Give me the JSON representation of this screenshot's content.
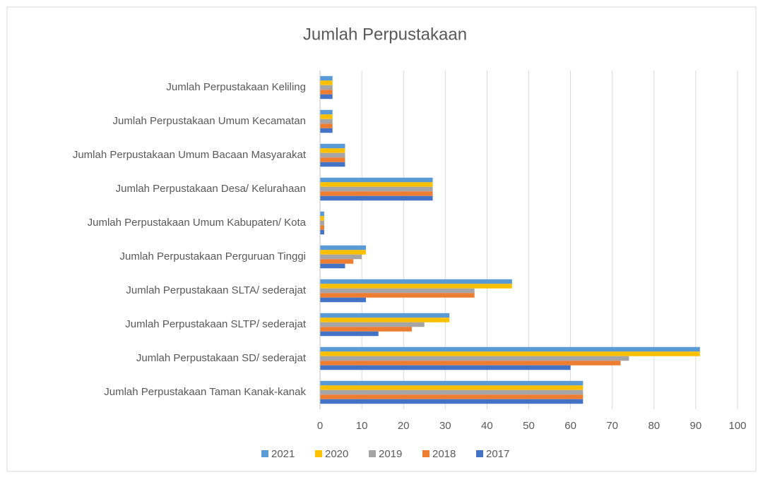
{
  "chart_data": {
    "type": "hbar",
    "title": "Jumlah Perpustakaan",
    "categories": [
      "Jumlah Perpustakaan Keliling",
      "Jumlah Perpustakaan Umum Kecamatan",
      "Jumlah Perpustakaan Umum Bacaan Masyarakat",
      "Jumlah Perpustakaan Desa/ Kelurahaan",
      "Jumlah Perpustakaan Umum Kabupaten/ Kota",
      "Jumlah Perpustakaan Perguruan Tinggi",
      "Jumlah Perpustakaan SLTA/ sederajat",
      "Jumlah Perpustakaan SLTP/ sederajat",
      "Jumlah Perpustakaan SD/ sederajat",
      "Jumlah Perpustakaan Taman Kanak-kanak"
    ],
    "series": [
      {
        "name": "2021",
        "color": "#5b9bd5",
        "values": [
          3,
          3,
          6,
          27,
          1,
          11,
          46,
          31,
          91,
          63
        ]
      },
      {
        "name": "2020",
        "color": "#ffc000",
        "values": [
          3,
          3,
          6,
          27,
          1,
          11,
          46,
          31,
          91,
          63
        ]
      },
      {
        "name": "2019",
        "color": "#a5a5a5",
        "values": [
          3,
          3,
          6,
          27,
          1,
          10,
          37,
          25,
          74,
          63
        ]
      },
      {
        "name": "2018",
        "color": "#ed7d31",
        "values": [
          3,
          3,
          6,
          27,
          1,
          8,
          37,
          22,
          72,
          63
        ]
      },
      {
        "name": "2017",
        "color": "#4472c4",
        "values": [
          3,
          3,
          6,
          27,
          1,
          6,
          11,
          14,
          60,
          63
        ]
      }
    ],
    "xlim": [
      0,
      100
    ],
    "xticks": [
      0,
      10,
      20,
      30,
      40,
      50,
      60,
      70,
      80,
      90,
      100
    ],
    "grid": true,
    "legend": "bottom"
  }
}
